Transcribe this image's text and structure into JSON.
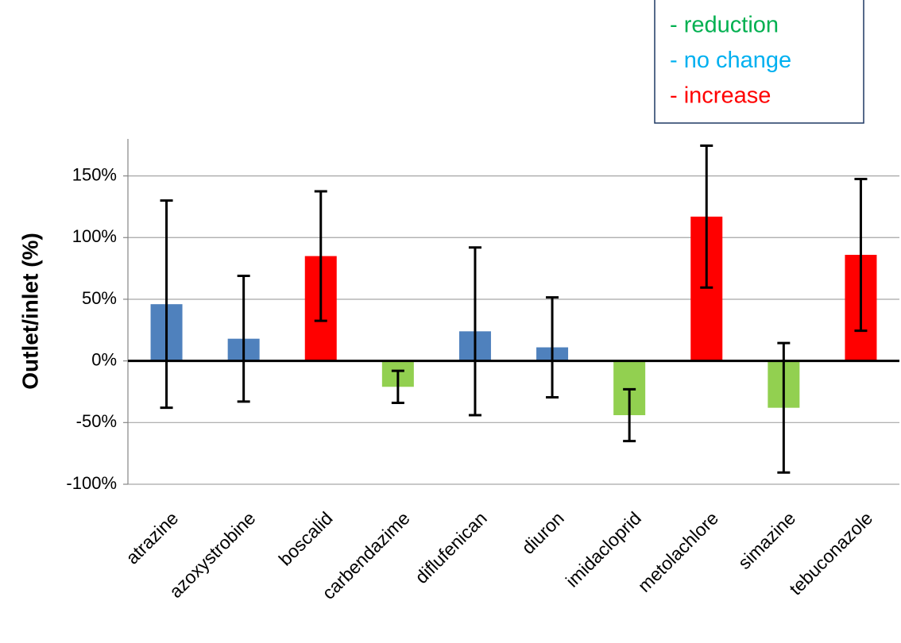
{
  "chart_data": {
    "type": "bar",
    "y_label": "Outlet/inlet (%)",
    "categories": [
      "atrazine",
      "azoxystrobine",
      "boscalid",
      "carbendazime",
      "diflufenican",
      "diuron",
      "imidacloprid",
      "metolachlore",
      "simazine",
      "tebuconazole"
    ],
    "series": [
      {
        "name": "- reduction",
        "color": "#92d050",
        "label_color": "#00b050",
        "values": [
          null,
          null,
          null,
          -21,
          null,
          null,
          -44,
          null,
          -38,
          null
        ],
        "errors": [
          null,
          null,
          null,
          13,
          null,
          null,
          21,
          null,
          52.5,
          null
        ]
      },
      {
        "name": "- no change",
        "color": "#4f81bd",
        "label_color": "#00b0f0",
        "values": [
          46,
          18,
          null,
          null,
          24,
          11,
          null,
          null,
          null,
          null
        ],
        "errors": [
          84,
          51,
          null,
          null,
          68,
          40.5,
          null,
          null,
          null,
          null
        ]
      },
      {
        "name": "- increase",
        "color": "#ff0000",
        "label_color": "#ff0000",
        "values": [
          null,
          null,
          85,
          null,
          null,
          null,
          null,
          117,
          null,
          86
        ],
        "errors": [
          null,
          null,
          52.5,
          null,
          null,
          null,
          null,
          57.5,
          null,
          61.5
        ]
      }
    ],
    "ylim": [
      -100,
      180
    ],
    "yticks": [
      {
        "value": -100,
        "label": "-100%"
      },
      {
        "value": -50,
        "label": "-50%"
      },
      {
        "value": 0,
        "label": "0%"
      },
      {
        "value": 50,
        "label": "50%"
      },
      {
        "value": 100,
        "label": "100%"
      },
      {
        "value": 150,
        "label": "150%"
      }
    ],
    "grid": true
  }
}
